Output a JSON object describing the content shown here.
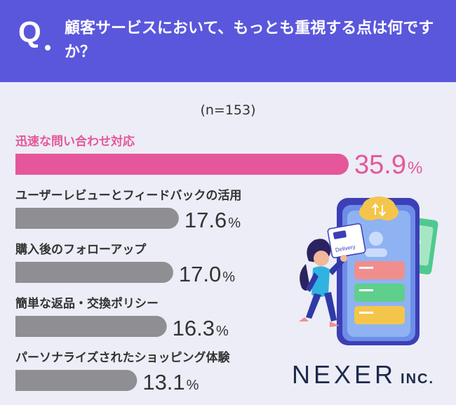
{
  "question": {
    "badge": "Q",
    "text": "顧客サービスにおいて、もっとも重視する点は何ですか？"
  },
  "sample_size": "(n=153)",
  "colors": {
    "header": "#5a57dc",
    "highlight": "#e5579a",
    "bar_default": "#8e8e93"
  },
  "chart_data": {
    "type": "bar",
    "orientation": "horizontal",
    "categories": [
      "迅速な問い合わせ対応",
      "ユーザーレビューとフィードバックの活用",
      "購入後のフォローアップ",
      "簡単な返品・交換ポリシー",
      "パーソナライズされたショッピング体験"
    ],
    "values": [
      35.9,
      17.6,
      17.0,
      16.3,
      13.1
    ],
    "value_labels": [
      "35.9",
      "17.6",
      "17.0",
      "16.3",
      "13.1"
    ],
    "unit": "%",
    "highlight_index": 0
  },
  "illustration": {
    "card_label": "Delivery"
  },
  "logo": {
    "name": "NEXER",
    "suffix": "INC."
  }
}
